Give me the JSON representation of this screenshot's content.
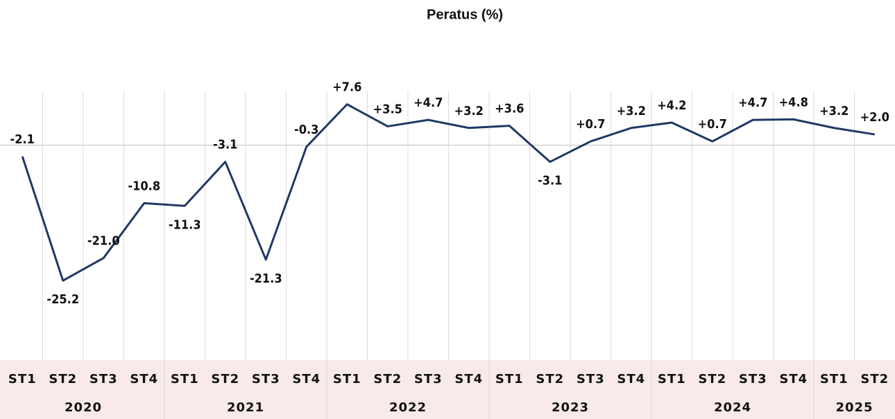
{
  "chart_data": {
    "type": "line",
    "title": "Peratus (%)",
    "groups": [
      {
        "name": "2020",
        "categories": [
          "ST1",
          "ST2",
          "ST3",
          "ST4"
        ]
      },
      {
        "name": "2021",
        "categories": [
          "ST1",
          "ST2",
          "ST3",
          "ST4"
        ]
      },
      {
        "name": "2022",
        "categories": [
          "ST1",
          "ST2",
          "ST3",
          "ST4"
        ]
      },
      {
        "name": "2023",
        "categories": [
          "ST1",
          "ST2",
          "ST3",
          "ST4"
        ]
      },
      {
        "name": "2024",
        "categories": [
          "ST1",
          "ST2",
          "ST3",
          "ST4"
        ]
      },
      {
        "name": "2025",
        "categories": [
          "ST1",
          "ST2"
        ]
      }
    ],
    "values": [
      -2.1,
      -25.2,
      -21.0,
      -10.8,
      -11.3,
      -3.1,
      -21.3,
      -0.3,
      7.6,
      3.5,
      4.7,
      3.2,
      3.6,
      -3.1,
      0.7,
      3.2,
      4.2,
      0.7,
      4.7,
      4.8,
      3.2,
      2.0
    ],
    "value_labels": [
      "-2.1",
      "-25.2",
      "-21.0",
      "-10.8",
      "-11.3",
      "-3.1",
      "-21.3",
      "-0.3",
      "+7.6",
      "+3.5",
      "+4.7",
      "+3.2",
      "+3.6",
      "-3.1",
      "+0.7",
      "+3.2",
      "+4.2",
      "+0.7",
      "+4.7",
      "+4.8",
      "+3.2",
      "+2.0"
    ],
    "color": "#1f3864",
    "ylim": [
      -40,
      10
    ],
    "zero_line": true,
    "grid": true
  }
}
